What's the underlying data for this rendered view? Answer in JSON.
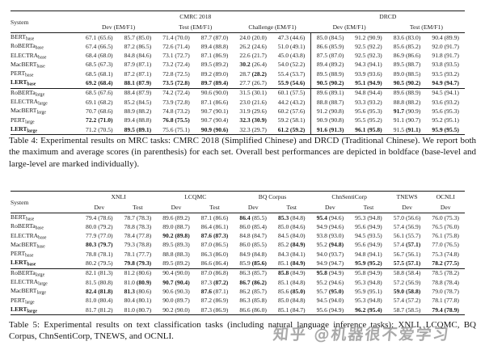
{
  "watermark": {
    "text": "知乎 @机器很不爱学习",
    "color": "#8d8d8d"
  },
  "table4": {
    "caption": "Table 4: Experimental results on MRC tasks: CMRC 2018 (Simplified Chinese) and DRCD (Traditional Chinese). We report both the maximum and average scores (in parenthesis) for each set. Overall best performances are depicted in boldface (base-level and large-level are marked individually).",
    "header": {
      "system": "System",
      "groups": [
        {
          "label": "CMRC 2018",
          "span": 6
        },
        {
          "label": "DRCD",
          "span": 4
        }
      ],
      "subcols": [
        {
          "label": "Dev (EM/F1)",
          "span": 2
        },
        {
          "label": "Test (EM/F1)",
          "span": 2
        },
        {
          "label": "Challenge (EM/F1)",
          "span": 2
        },
        {
          "label": "Dev (EM/F1)",
          "span": 2
        },
        {
          "label": "Test (EM/F1)",
          "span": 2
        }
      ]
    },
    "divider_before_col": 7,
    "sections": [
      {
        "rows": [
          {
            "name": "BERT",
            "sub": "base",
            "cells": [
              "67.1 (65.6)",
              "85.7 (85.0)",
              "71.4 (70.0)",
              "87.7 (87.0)",
              "24.0 (20.0)",
              "47.3 (44.6)",
              "85.0 (84.5)",
              "91.2 (90.9)",
              "83.6 (83.0)",
              "90.4 (89.9)"
            ]
          },
          {
            "name": "RoBERTa",
            "sub": "base",
            "cells": [
              "67.4 (66.5)",
              "87.2 (86.5)",
              "72.6 (71.4)",
              "89.4 (88.8)",
              "26.2 (24.6)",
              "51.0 (49.1)",
              "86.6 (85.9)",
              "92.5 (92.2)",
              "85.6 (85.2)",
              "92.0 (91.7)"
            ]
          },
          {
            "name": "ELECTRA",
            "sub": "base",
            "cells": [
              "68.4 (68.0)",
              "84.8 (84.6)",
              "73.1 (72.7)",
              "87.1 (86.9)",
              "22.6 (21.7)",
              "45.0 (43.8)",
              "87.5 (87.0)",
              "92.5 (92.3)",
              "86.9 (86.6)",
              "91.8 (91.7)"
            ]
          },
          {
            "name": "MacBERT",
            "sub": "base",
            "cells": [
              "68.5 (67.3)",
              "87.9 (87.1)",
              "73.2 (72.4)",
              "89.5 (89.2)",
              "*30.2* (26.4)",
              "54.0 (52.2)",
              "89.4 (89.2)",
              "94.3 (94.1)",
              "89.5 (88.7)",
              "93.8 (93.5)"
            ]
          },
          {
            "name": "PERT",
            "sub": "base",
            "cells": [
              "68.5 (68.1)",
              "87.2 (87.1)",
              "72.8 (72.5)",
              "89.2 (89.0)",
              "28.7 *(28.2)*",
              "55.4 (53.7)",
              "89.5 (88.9)",
              "93.9 (93.6)",
              "89.0 (88.5)",
              "93.5 (93.2)"
            ]
          },
          {
            "name": "LERT",
            "sub": "base",
            "bold": true,
            "cells": [
              "*69.2 (68.4)*",
              "*88.1 (87.9)*",
              "*73.5 (72.8)*",
              "*89.7 (89.4)*",
              "27.7 (26.7)",
              "*55.9 (54.6)*",
              "*90.5 (90.2)*",
              "*95.1 (94.9)*",
              "*90.5 (90.2)*",
              "*94.9 (94.7)*"
            ]
          }
        ]
      },
      {
        "rows": [
          {
            "name": "RoBERTa",
            "sub": "large",
            "cells": [
              "68.5 (67.6)",
              "88.4 (87.9)",
              "74.2 (72.4)",
              "90.6 (90.0)",
              "31.5 (30.1)",
              "60.1 (57.5)",
              "89.6 (89.1)",
              "94.8 (94.4)",
              "89.6 (88.9)",
              "94.5 (94.1)"
            ]
          },
          {
            "name": "ELECTRA",
            "sub": "large",
            "cells": [
              "69.1 (68.2)",
              "85.2 (84.5)",
              "73.9 (72.8)",
              "87.1 (86.6)",
              "23.0 (21.6)",
              "44.2 (43.2)",
              "88.8 (88.7)",
              "93.3 (93.2)",
              "88.8 (88.2)",
              "93.6 (93.2)"
            ]
          },
          {
            "name": "MacBERT",
            "sub": "large",
            "cells": [
              "70.7 (68.6)",
              "88.9 (88.2)",
              "74.8 (73.2)",
              "90.7 (90.1)",
              "31.9 (29.6)",
              "60.2 (57.6)",
              "91.2 (90.8)",
              "95.6 (95.3)",
              "*91.7* (90.9)",
              "95.6 (95.3)"
            ]
          },
          {
            "name": "PERT",
            "sub": "large",
            "cells": [
              "*72.2 (71.0)*",
              "89.4 (88.8)",
              "*76.8 (75.5)*",
              "90.7 (90.4)",
              "*32.3 (30.9)*",
              "59.2 (58.1)",
              "90.9 (90.8)",
              "95.5 (95.2)",
              "91.1 (90.7)",
              "95.2 (95.1)"
            ]
          },
          {
            "name": "LERT",
            "sub": "large",
            "bold": true,
            "cells": [
              "71.2 (70.5)",
              "*89.5 (89.1)*",
              "75.6 (75.1)",
              "*90.9 (90.6)*",
              "32.3 (29.7)",
              "*61.2 (59.2)*",
              "*91.6 (91.3)*",
              "*96.1 (95.8)*",
              "91.5 *(91.1)*",
              "*95.9 (95.5)*"
            ]
          }
        ]
      }
    ]
  },
  "table5": {
    "caption": "Table 5: Experimental results on text classification tasks (including natural language inference tasks): XNLI, LCQMC, BQ Corpus, ChnSentiCorp, TNEWS, and OCNLI.",
    "header": {
      "system": "System",
      "groups": [
        {
          "label": "XNLI",
          "span": 2
        },
        {
          "label": "LCQMC",
          "span": 2
        },
        {
          "label": "BQ Corpus",
          "span": 2
        },
        {
          "label": "ChnSentiCorp",
          "span": 2
        },
        {
          "label": "TNEWS",
          "span": 1
        },
        {
          "label": "OCNLI",
          "span": 1
        }
      ],
      "subcols": [
        {
          "label": "Dev",
          "span": 1
        },
        {
          "label": "Test",
          "span": 1
        },
        {
          "label": "Dev",
          "span": 1
        },
        {
          "label": "Test",
          "span": 1
        },
        {
          "label": "Dev",
          "span": 1
        },
        {
          "label": "Test",
          "span": 1
        },
        {
          "label": "Dev",
          "span": 1
        },
        {
          "label": "Test",
          "span": 1
        },
        {
          "label": "Dev",
          "span": 1
        },
        {
          "label": "Dev",
          "span": 1
        }
      ]
    },
    "divider_before_col": null,
    "sections": [
      {
        "rows": [
          {
            "name": "BERT",
            "sub": "base",
            "cells": [
              "79.4 (78.6)",
              "78.7 (78.3)",
              "89.6 (89.2)",
              "87.1 (86.6)",
              "*86.4* (85.5)",
              "*85.3* (84.8)",
              "*95.4* (94.6)",
              "95.3 (94.8)",
              "57.0 (56.6)",
              "76.0 (75.3)"
            ]
          },
          {
            "name": "RoBERTa",
            "sub": "base",
            "cells": [
              "80.0 (79.2)",
              "78.8 (78.3)",
              "89.0 (88.7)",
              "86.4 (86.1)",
              "86.0 (85.4)",
              "85.0 (84.6)",
              "94.9 (94.6)",
              "95.6 (94.9)",
              "57.4 (56.9)",
              "76.5 (76.0)"
            ]
          },
          {
            "name": "ELECTRA",
            "sub": "base",
            "cells": [
              "77.9 (77.0)",
              "78.4 (77.8)",
              "*90.2 (89.8)*",
              "*87.6 (87.3)*",
              "84.8 (84.7)",
              "84.5 (84.0)",
              "93.8 (93.0)",
              "94.5 (93.5)",
              "56.1 (55.7)",
              "76.1 (75.8)"
            ]
          },
          {
            "name": "MacBERT",
            "sub": "base",
            "cells": [
              "*80.3 (79.7)*",
              "79.3 (78.8)",
              "89.5 (89.3)",
              "87.0 (86.5)",
              "86.0 (85.5)",
              "85.2 *(84.9)*",
              "95.2 *(94.8)*",
              "95.6 (94.9)",
              "57.4 *(57.1)*",
              "77.0 (76.5)"
            ]
          },
          {
            "name": "PERT",
            "sub": "base",
            "cells": [
              "78.8 (78.1)",
              "78.1 (77.7)",
              "88.8 (88.3)",
              "86.3 (86.0)",
              "84.9 (84.8)",
              "84.3 (84.1)",
              "94.0 (93.7)",
              "94.8 (94.1)",
              "56.7 (56.1)",
              "75.3 (74.8)"
            ]
          },
          {
            "name": "LERT",
            "sub": "base",
            "bold": true,
            "cells": [
              "80.2 (79.5)",
              "*79.8 (79.3)*",
              "89.5 (89.2)",
              "86.6 (86.4)",
              "85.9 *(85.6)*",
              "85.1 *(84.9)*",
              "94.9 (94.7)",
              "*95.9 (95.2)*",
              "*57.5 (57.1)*",
              "*78.2 (77.5)*"
            ]
          }
        ]
      },
      {
        "rows": [
          {
            "name": "RoBERTa",
            "sub": "large",
            "cells": [
              "82.1 (81.3)",
              "81.2 (80.6)",
              "90.4 (90.0)",
              "87.0 (86.8)",
              "86.3 (85.7)",
              "*85.8* (84.9)",
              "*95.8* (94.9)",
              "95.8 (94.9)",
              "58.8 (58.4)",
              "78.5 (78.2)"
            ]
          },
          {
            "name": "ELECTRA",
            "sub": "large",
            "cells": [
              "81.5 (80.8)",
              "81.0 *(80.9)*",
              "*90.7 (90.4)*",
              "87.3 *(87.2)*",
              "*86.7 (86.2)*",
              "85.1 (84.8)",
              "95.2 (94.6)",
              "95.3 (94.8)",
              "57.2 (56.9)",
              "78.8 (78.4)"
            ]
          },
          {
            "name": "MacBERT",
            "sub": "large",
            "cells": [
              "*82.4 (81.8)*",
              "*81.3* (80.6)",
              "90.6 (90.3)",
              "*87.6* (87.1)",
              "86.2 (85.7)",
              "85.6 *(85.0)*",
              "95.7 *(95.0)*",
              "95.9 (95.1)",
              "*59.0 (58.8)*",
              "79.0 (78.7)"
            ]
          },
          {
            "name": "PERT",
            "sub": "large",
            "cells": [
              "81.0 (80.4)",
              "80.4 (80.1)",
              "90.0 (89.7)",
              "87.2 (86.9)",
              "86.3 (85.8)",
              "85.0 (84.8)",
              "94.5 (94.0)",
              "95.3 (94.8)",
              "57.4 (57.2)",
              "78.1 (77.8)"
            ]
          },
          {
            "name": "LERT",
            "sub": "large",
            "bold": true,
            "cells": [
              "81.7 (81.2)",
              "81.0 (80.7)",
              "90.2 (90.0)",
              "87.3 (86.9)",
              "86.6 (86.0)",
              "85.1 (84.7)",
              "95.6 (94.9)",
              "*96.2 (95.4)*",
              "58.7 (58.5)",
              "*79.4 (78.9)*"
            ]
          }
        ]
      }
    ]
  }
}
